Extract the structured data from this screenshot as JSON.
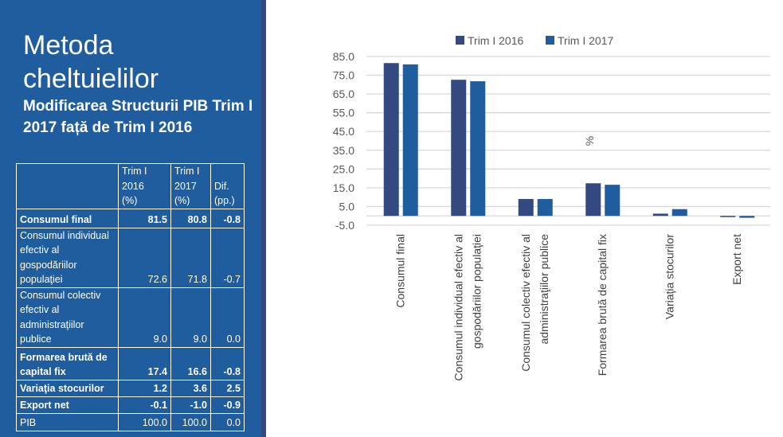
{
  "left_panel": {
    "title_line1": "Metoda",
    "title_line2": "cheltuielilor",
    "subtitle": "Modificarea Structurii PIB Trim I 2017 față de Trim I 2016",
    "table": {
      "headers": [
        "",
        "Trim I 2016 (%)",
        "Trim I 2017 (%)",
        "Dif. (pp.)"
      ],
      "header_lines": [
        [
          ""
        ],
        [
          "Trim I",
          "2016",
          "(%)"
        ],
        [
          "Trim I",
          "2017",
          "(%)"
        ],
        [
          "Dif.",
          "(pp.)"
        ]
      ],
      "rows": [
        {
          "label": "Consumul final",
          "v2016": "81.5",
          "v2017": "80.8",
          "dif": "-0.8",
          "bold": true
        },
        {
          "label": "Consumul individual efectiv al gospodăriilor populaţiei",
          "v2016": "72.6",
          "v2017": "71.8",
          "dif": "-0.7",
          "bold": false
        },
        {
          "label": "Consumul colectiv efectiv al administraţiilor publice",
          "v2016": "9.0",
          "v2017": "9.0",
          "dif": "0.0",
          "bold": false
        },
        {
          "label": "Formarea brută de capital fix",
          "v2016": "17.4",
          "v2017": "16.6",
          "dif": "-0.8",
          "bold": true
        },
        {
          "label": "Variaţia stocurilor",
          "v2016": "1.2",
          "v2017": "3.6",
          "dif": "2.5",
          "bold": true
        },
        {
          "label": "Export net",
          "v2016": "-0.1",
          "v2017": "-1.0",
          "dif": "-0.9",
          "bold": true
        },
        {
          "label": "PIB",
          "v2016": "100.0",
          "v2017": "100.0",
          "dif": "0.0",
          "bold": false
        }
      ]
    }
  },
  "colors": {
    "panel_bg": "#1F5D9E",
    "series_2016": "#34497F",
    "series_2017": "#1F5D9E",
    "grid": "#D9D9D9"
  },
  "chart_data": {
    "type": "bar",
    "title": "",
    "xlabel": "",
    "ylabel": "%",
    "ylim": [
      -5,
      85
    ],
    "yticks": [
      85,
      75,
      65,
      55,
      45,
      35,
      25,
      15,
      5,
      -5
    ],
    "ytick_labels": [
      "85.0",
      "75.0",
      "65.0",
      "55.0",
      "45.0",
      "35.0",
      "25.0",
      "15.0",
      "5.0",
      "-5.0"
    ],
    "grid": true,
    "legend_position": "top",
    "categories": [
      [
        "Consumul final"
      ],
      [
        "Consumul individual efectiv al",
        "gospodăriilor populaţiei"
      ],
      [
        "Consumul colectiv efectiv al",
        "administraţiilor publice"
      ],
      [
        "Formarea brută de capital fix"
      ],
      [
        "Variaţia stocurilor"
      ],
      [
        "Export net"
      ]
    ],
    "series": [
      {
        "name": "Trim I 2016",
        "values": [
          81.5,
          72.6,
          9.0,
          17.4,
          1.2,
          -0.1
        ]
      },
      {
        "name": "Trim I 2017",
        "values": [
          80.8,
          71.8,
          9.0,
          16.6,
          3.6,
          -1.0
        ]
      }
    ]
  }
}
